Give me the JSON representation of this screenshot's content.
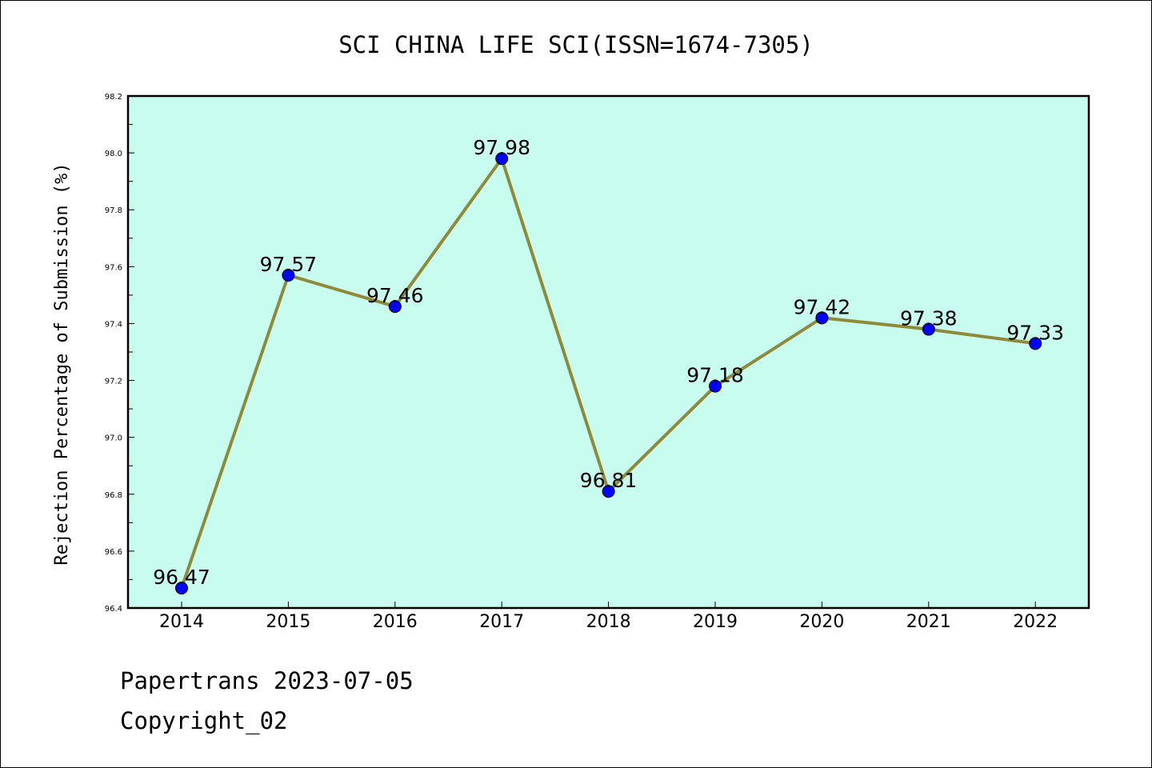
{
  "chart_data": {
    "type": "line",
    "title": "SCI CHINA LIFE SCI(ISSN=1674-7305)",
    "xlabel": "",
    "ylabel": "Rejection Percentage of Submission (%)",
    "categories": [
      "2014",
      "2015",
      "2016",
      "2017",
      "2018",
      "2019",
      "2020",
      "2021",
      "2022"
    ],
    "series": [
      {
        "values": [
          96.47,
          97.57,
          97.46,
          97.98,
          96.81,
          97.18,
          97.42,
          97.38,
          97.33
        ],
        "data_labels": [
          "96.47",
          "97.57",
          "97.46",
          "97.98",
          "96.81",
          "97.18",
          "97.42",
          "97.38",
          "97.33"
        ]
      }
    ],
    "ylim": [
      96.4,
      98.2
    ],
    "yticks": [
      "96.4",
      "96.6",
      "96.8",
      "97.0",
      "97.2",
      "97.4",
      "97.6",
      "97.8",
      "98.0",
      "98.2"
    ],
    "grid": false,
    "legend": "none",
    "colors": {
      "plot_background": "#c8fcee",
      "line": "#8f8a3a",
      "marker": "#0000ff"
    }
  },
  "footer": {
    "line1": "Papertrans 2023-07-05",
    "line2": "Copyright_02"
  }
}
